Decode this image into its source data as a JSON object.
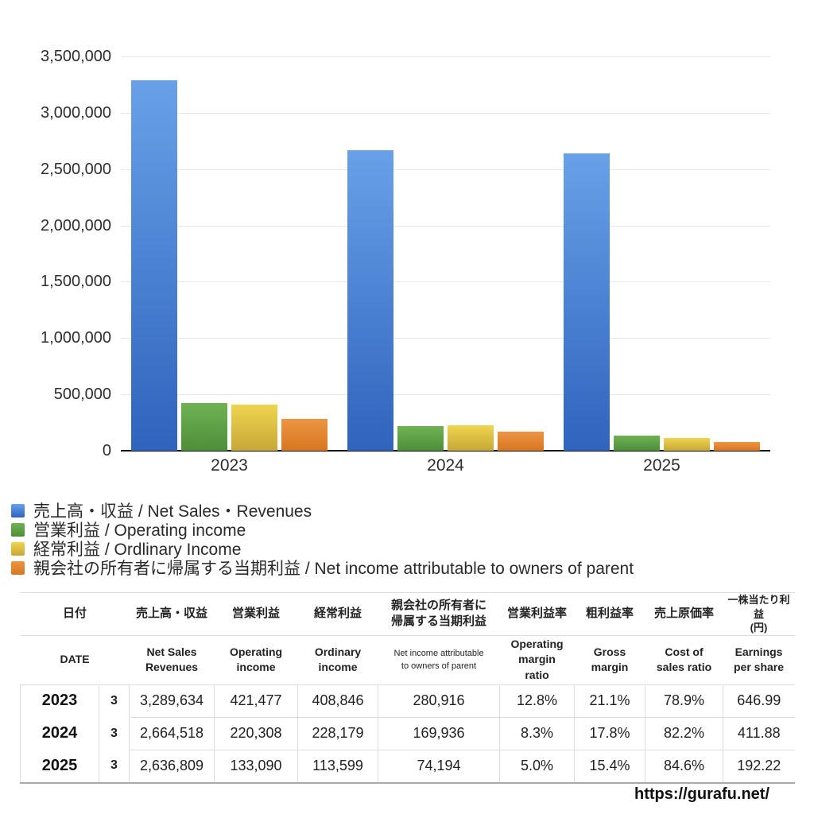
{
  "chart_data": {
    "type": "bar",
    "title": "",
    "categories": [
      "2023",
      "2024",
      "2025"
    ],
    "series": [
      {
        "label": "売上高・収益 / Net Sales・Revenues",
        "values": [
          3289634,
          2664518,
          2636809
        ],
        "color_top": "#68a1e8",
        "color_bottom": "#3063bd"
      },
      {
        "label": "営業利益 / Operating income",
        "values": [
          421477,
          220308,
          133090
        ],
        "color_top": "#6fb254",
        "color_bottom": "#4e8e39"
      },
      {
        "label": "経常利益 / Ordlinary Income",
        "values": [
          408846,
          228179,
          113599
        ],
        "color_top": "#eed54f",
        "color_bottom": "#c7a737"
      },
      {
        "label": "親会社の所有者に帰属する当期利益 / Net income attributable to owners of parent",
        "values": [
          280916,
          169936,
          74194
        ],
        "color_top": "#ec9543",
        "color_bottom": "#d87620"
      }
    ],
    "ylim": [
      0,
      3500000
    ],
    "yticks": [
      "3,500,000",
      "3,000,000",
      "2,500,000",
      "2,000,000",
      "1,500,000",
      "1,000,000",
      "500,000",
      "0"
    ],
    "grid": true,
    "legend_position": "bottom-left",
    "axis_color": "#141414",
    "gridline_color": "#e7e7e7"
  },
  "table": {
    "columns": [
      {
        "jp": "日付",
        "en": "DATE"
      },
      {
        "jp": "売上高・収益",
        "en": "Net Sales\nRevenues"
      },
      {
        "jp": "営業利益",
        "en": "Operating\nincome"
      },
      {
        "jp": "経常利益",
        "en": "Ordinary\nincome"
      },
      {
        "jp": "親会社の所有者に\n帰属する当期利益",
        "en": "Net income attributable\nto owners of parent"
      },
      {
        "jp": "営業利益率",
        "en": "Operating\nmargin\nratio"
      },
      {
        "jp": "粗利益率",
        "en": "Gross\nmargin"
      },
      {
        "jp": "売上原価率",
        "en": "Cost of\nsales ratio"
      },
      {
        "jp": "一株当たり利益\n(円)",
        "en": "Earnings\nper share"
      }
    ],
    "rows": [
      {
        "year": "2023",
        "month": "3",
        "values": [
          "3,289,634",
          "421,477",
          "408,846",
          "280,916",
          "12.8%",
          "21.1%",
          "78.9%",
          "646.99"
        ]
      },
      {
        "year": "2024",
        "month": "3",
        "values": [
          "2,664,518",
          "220,308",
          "228,179",
          "169,936",
          "8.3%",
          "17.8%",
          "82.2%",
          "411.88"
        ]
      },
      {
        "year": "2025",
        "month": "3",
        "values": [
          "2,636,809",
          "133,090",
          "113,599",
          "74,194",
          "5.0%",
          "15.4%",
          "84.6%",
          "192.22"
        ]
      }
    ]
  },
  "footer": {
    "url": "https://gurafu.net/"
  }
}
